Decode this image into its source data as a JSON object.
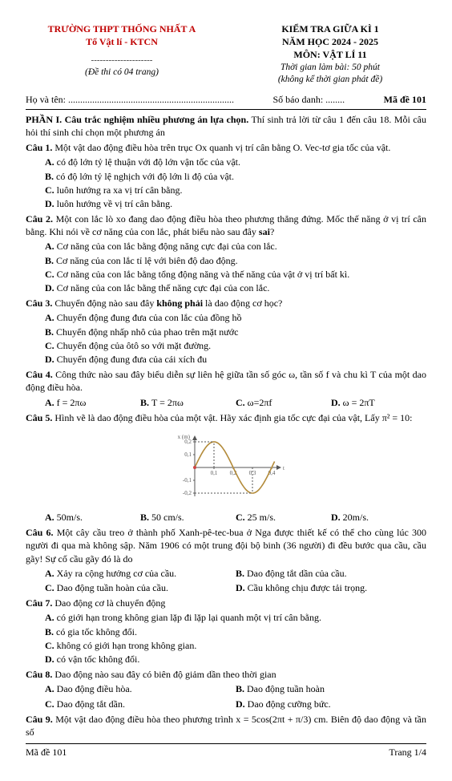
{
  "header": {
    "school": "TRƯỜNG THPT THỐNG NHẤT A",
    "dept": "Tổ Vật lí - KTCN",
    "dashes": "---------------------",
    "pages": "(Đề thi có 04 trang)",
    "exam_title": "KIỂM TRA GIỮA KÌ 1",
    "year": "NĂM HỌC 2024 - 2025",
    "subject": "MÔN: VẬT LÍ 11",
    "time": "Thời gian làm bài: 50 phút",
    "note": "(không kể thời gian phát đề)"
  },
  "info": {
    "name_label": "Họ và tên: .....................................................................",
    "sbd_label": "Số báo danh: ........",
    "made": "Mã đề 101"
  },
  "section": "PHẦN I. Câu trắc nghiệm nhiều phương án lựa chọn.",
  "section_rest": " Thí sinh trả lời từ câu 1 đến câu 18. Mỗi câu hỏi thí sinh chỉ chọn một phương án",
  "q1": {
    "label": "Câu 1.",
    "text": " Một vật dao động điều hòa trên trục Ox quanh vị trí cân bằng O. Vec-tơ gia tốc của vật.",
    "A": "có độ lớn tỷ lệ thuận với độ lớn vận tốc của vật.",
    "B": "có độ lớn tỷ lệ nghịch với độ lớn li độ của vật.",
    "C": "luôn hướng ra xa vị trí cân bằng.",
    "D": "luôn hướng về vị trí cân bằng."
  },
  "q2": {
    "label": "Câu 2.",
    "text": " Một con lắc lò xo đang dao động điều hòa theo phương thẳng đứng. Mốc thế năng ở vị trí cân bằng. Khi nói về cơ năng của con lắc, phát biểu nào sau đây ",
    "bold": "sai",
    "tail": "?",
    "A": "Cơ năng của con lắc bằng động năng cực đại của con lắc.",
    "B": "Cơ năng của con lắc tỉ lệ với biên độ dao động.",
    "C": "Cơ năng của con lắc bằng tổng động năng và thế năng của vật ở vị trí bất kì.",
    "D": "Cơ năng của con lắc bằng thế năng cực đại của con lắc."
  },
  "q3": {
    "label": "Câu 3.",
    "text": " Chuyển động nào sau đây ",
    "bold": "không phải",
    "tail": " là dao động cơ học?",
    "A": "Chuyển động đung đưa của con lắc của đồng hồ",
    "B": "Chuyển động nhấp nhô của phao trên mặt nước",
    "C": "Chuyển động của ôtô so với mặt  đường.",
    "D": "Chuyển động đung đưa của cái xích đu"
  },
  "q4": {
    "label": "Câu 4.",
    "text": " Công thức nào sau đây biểu diễn sự liên hệ giữa tần số góc ω, tần số f và chu kì T của một dao động điều hòa.",
    "A": "f = 2πω",
    "B": "T = 2πω",
    "C": "ω=2πf",
    "D": "ω = 2πT"
  },
  "q5": {
    "label": "Câu 5.",
    "text": " Hình vẽ là dao động điều hòa của một vật. Hãy xác định gia tốc cực đại của vật, Lấy π² = 10:",
    "A": "50m/s.",
    "B": "50 cm/s.",
    "C": "25 m/s.",
    "D": "20m/s."
  },
  "chart": {
    "width": 150,
    "height": 92,
    "x_axis_y": 48,
    "y_axis_x": 36,
    "yticks": [
      "0,2",
      "0,1",
      "-0,1",
      "-0,2"
    ],
    "xticks": [
      "0,1",
      "0,2",
      "0,3",
      "0,4"
    ],
    "ylabel": "x (m)",
    "xlabel": "t (s)",
    "curve_color": "#b38b3a",
    "axis_color": "#555",
    "tick_color": "#555",
    "dot_color": "#c44",
    "font_size": 7
  },
  "q6": {
    "label": "Câu 6.",
    "text": " Một cây cầu treo ở thành phố Xanh-pê-tec-bua ở Nga được thiết kế có thể cho cùng lúc 300 người đi qua mà không sập. Năm 1906 có một trung đội bộ binh (36 người) đi đều bước qua cầu, cầu gãy! Sự cố cầu gãy đó là do",
    "A": "Xảy ra cộng hưởng cơ của cầu.",
    "B": "Dao động tắt dần của cầu.",
    "C": "Dao động tuần hoàn của cầu.",
    "D": "Cầu không chịu được tải trọng."
  },
  "q7": {
    "label": "Câu 7.",
    "text": " Dao động cơ là chuyển động",
    "A": "có giới hạn trong không gian lặp đi lặp lại quanh một vị trí cân bằng.",
    "B": "có gia tốc không đổi.",
    "C": "không có giới hạn trong không gian.",
    "D": "có vận tốc không đổi."
  },
  "q8": {
    "label": "Câu 8.",
    "text": " Dao động nào sau đây có biên độ giảm dần theo thời gian",
    "A": "Dao động điều hòa.",
    "B": "Dao động tuần hoàn",
    "C": "Dao động tắt dần.",
    "D": "Dao động cưỡng bức."
  },
  "q9": {
    "label": "Câu 9.",
    "text": " Một vật dao động điều hòa theo phương trình x = 5cos(2πt + π/3) cm. Biên độ dao động và tần số"
  },
  "footer": {
    "made": "Mã đề 101",
    "page": "Trang 1/4"
  }
}
